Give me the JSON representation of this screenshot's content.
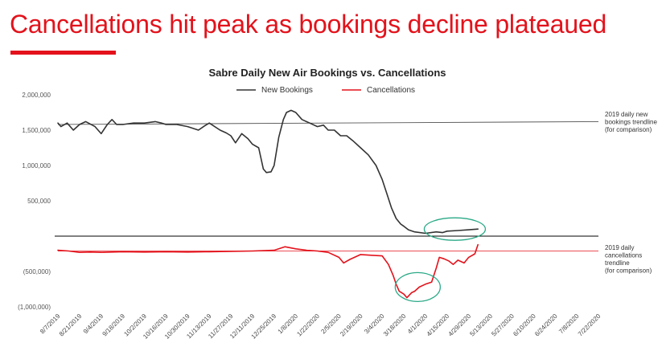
{
  "slide": {
    "title": "Cancellations hit peak as bookings decline plateaued",
    "accent_color": "#e3121b"
  },
  "chart_data": {
    "type": "line",
    "title": "Sabre Daily New Air Bookings vs. Cancellations",
    "legend_position": "top",
    "grid": false,
    "ylim": [
      -1000000,
      2000000
    ],
    "y_ticks": [
      {
        "value": 2000000,
        "label": "2,000,000"
      },
      {
        "value": 1500000,
        "label": "1,500,000"
      },
      {
        "value": 1000000,
        "label": "1,000,000"
      },
      {
        "value": 500000,
        "label": "500,000"
      },
      {
        "value": -500000,
        "label": "(500,000)"
      },
      {
        "value": -1000000,
        "label": "(1,000,000)"
      }
    ],
    "x_ticks": [
      "8/7/2019",
      "8/21/2019",
      "9/4/2019",
      "9/18/2019",
      "10/2/2019",
      "10/16/2019",
      "10/30/2019",
      "11/13/2019",
      "11/27/2019",
      "12/11/2019",
      "12/25/2019",
      "1/8/2020",
      "1/22/2020",
      "2/5/2020",
      "2/19/2020",
      "3/4/2020",
      "3/18/2020",
      "4/1/2020",
      "4/15/2020",
      "4/29/2020",
      "5/13/2020",
      "5/27/2020",
      "6/10/2020",
      "6/24/2020",
      "7/8/2020",
      "7/22/2020"
    ],
    "series": [
      {
        "name": "New Bookings",
        "color": "#333333",
        "x": [
          "8/7/2019",
          "8/9/2019",
          "8/13/2019",
          "8/17/2019",
          "8/21/2019",
          "8/25/2019",
          "8/31/2019",
          "9/4/2019",
          "9/8/2019",
          "9/11/2019",
          "9/14/2019",
          "9/18/2019",
          "9/25/2019",
          "10/2/2019",
          "10/9/2019",
          "10/13/2019",
          "10/16/2019",
          "10/23/2019",
          "10/30/2019",
          "11/6/2019",
          "11/10/2019",
          "11/13/2019",
          "11/20/2019",
          "11/24/2019",
          "11/27/2019",
          "11/30/2019",
          "12/4/2019",
          "12/8/2019",
          "12/11/2019",
          "12/15/2019",
          "12/18/2019",
          "12/20/2019",
          "12/23/2019",
          "12/25/2019",
          "12/28/2019",
          "12/31/2019",
          "1/2/2020",
          "1/5/2020",
          "1/8/2020",
          "1/12/2020",
          "1/17/2020",
          "1/22/2020",
          "1/26/2020",
          "1/29/2020",
          "2/2/2020",
          "2/6/2020",
          "2/10/2020",
          "2/14/2020",
          "2/19/2020",
          "2/24/2020",
          "2/29/2020",
          "3/4/2020",
          "3/7/2020",
          "3/10/2020",
          "3/13/2020",
          "3/16/2020",
          "3/18/2020",
          "3/21/2020",
          "3/25/2020",
          "4/1/2020",
          "4/8/2020",
          "4/12/2020",
          "4/15/2020",
          "4/22/2020",
          "4/29/2020",
          "5/5/2020"
        ],
        "values": [
          1600000,
          1550000,
          1600000,
          1500000,
          1580000,
          1620000,
          1550000,
          1450000,
          1580000,
          1650000,
          1580000,
          1580000,
          1600000,
          1600000,
          1620000,
          1600000,
          1580000,
          1580000,
          1550000,
          1500000,
          1560000,
          1600000,
          1500000,
          1460000,
          1420000,
          1320000,
          1450000,
          1380000,
          1300000,
          1250000,
          950000,
          900000,
          910000,
          1000000,
          1400000,
          1650000,
          1750000,
          1780000,
          1750000,
          1650000,
          1600000,
          1550000,
          1570000,
          1500000,
          1500000,
          1420000,
          1420000,
          1350000,
          1250000,
          1150000,
          1000000,
          800000,
          600000,
          400000,
          250000,
          170000,
          140000,
          90000,
          60000,
          40000,
          60000,
          50000,
          70000,
          80000,
          90000,
          100000
        ]
      },
      {
        "name": "Cancellations",
        "color": "#e3121b",
        "x": [
          "8/7/2019",
          "8/14/2019",
          "8/21/2019",
          "8/28/2019",
          "9/4/2019",
          "9/11/2019",
          "9/18/2019",
          "10/2/2019",
          "10/16/2019",
          "10/30/2019",
          "11/13/2019",
          "11/27/2019",
          "12/11/2019",
          "12/25/2019",
          "1/1/2020",
          "1/8/2020",
          "1/15/2020",
          "1/22/2020",
          "1/29/2020",
          "2/5/2020",
          "2/8/2020",
          "2/12/2020",
          "2/16/2020",
          "2/19/2020",
          "2/26/2020",
          "3/4/2020",
          "3/8/2020",
          "3/11/2020",
          "3/13/2020",
          "3/15/2020",
          "3/18/2020",
          "3/20/2020",
          "3/23/2020",
          "3/25/2020",
          "3/28/2020",
          "4/1/2020",
          "4/5/2020",
          "4/8/2020",
          "4/10/2020",
          "4/13/2020",
          "4/16/2020",
          "4/19/2020",
          "4/22/2020",
          "4/26/2020",
          "4/29/2020",
          "5/3/2020",
          "5/5/2020"
        ],
        "values": [
          -200000,
          -210000,
          -230000,
          -225000,
          -230000,
          -225000,
          -220000,
          -225000,
          -220000,
          -225000,
          -220000,
          -215000,
          -210000,
          -200000,
          -150000,
          -180000,
          -200000,
          -210000,
          -230000,
          -300000,
          -380000,
          -330000,
          -290000,
          -260000,
          -270000,
          -280000,
          -400000,
          -550000,
          -680000,
          -780000,
          -820000,
          -870000,
          -800000,
          -780000,
          -720000,
          -680000,
          -650000,
          -450000,
          -300000,
          -320000,
          -350000,
          -400000,
          -340000,
          -380000,
          -300000,
          -250000,
          -120000
        ]
      }
    ],
    "trendlines": [
      {
        "series": "New Bookings",
        "color": "#555555",
        "start_value": 1580000,
        "end_value": 1620000,
        "label": [
          "2019 daily new",
          "bookings trendline",
          "(for comparison)"
        ]
      },
      {
        "series": "Cancellations",
        "color": "#e3121b",
        "start_value": -210000,
        "end_value": -210000,
        "label": [
          "2019 daily",
          "cancellations",
          "trendline",
          "(for comparison)"
        ]
      }
    ],
    "highlight_ellipses": [
      {
        "center_date": "4/20/2020",
        "center_value": 100000,
        "color": "#2aa987"
      },
      {
        "center_date": "3/27/2020",
        "center_value": -720000,
        "color": "#2aa987"
      }
    ]
  }
}
